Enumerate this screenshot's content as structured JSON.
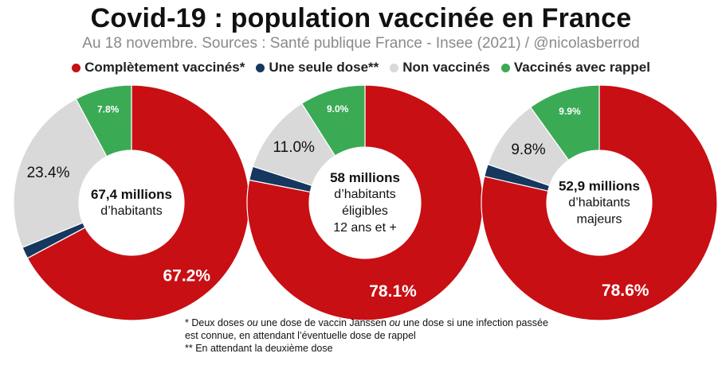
{
  "title": "Covid-19 : population vaccinée en France",
  "subtitle": "Au 18 novembre. Sources : Santé publique France - Insee (2021) / @nicolasberrod",
  "legend": [
    {
      "label": "Complètement vaccinés*",
      "color": "#c80f14"
    },
    {
      "label": "Une seule dose**",
      "color": "#16375e"
    },
    {
      "label": "Non vaccinés",
      "color": "#d9d9d9"
    },
    {
      "label": "Vaccinés avec rappel",
      "color": "#3aaa55"
    }
  ],
  "chart_data": [
    {
      "type": "pie",
      "variant": "donut",
      "center_label": [
        "67,4 millions",
        "d’habitants"
      ],
      "series": [
        {
          "name": "Complètement vaccinés*",
          "value": 67.2,
          "label": "67.2%",
          "color": "#c80f14"
        },
        {
          "name": "Une seule dose**",
          "value": 1.6,
          "label": "",
          "color": "#16375e"
        },
        {
          "name": "Non vaccinés",
          "value": 23.4,
          "label": "23.4%",
          "color": "#d9d9d9"
        },
        {
          "name": "Vaccinés avec rappel",
          "value": 7.8,
          "label": "7.8%",
          "color": "#3aaa55"
        }
      ]
    },
    {
      "type": "pie",
      "variant": "donut",
      "center_label": [
        "58 millions",
        "d’habitants",
        "éligibles",
        "12 ans et +"
      ],
      "series": [
        {
          "name": "Complètement vaccinés*",
          "value": 78.1,
          "label": "78.1%",
          "color": "#c80f14"
        },
        {
          "name": "Une seule dose**",
          "value": 1.9,
          "label": "",
          "color": "#16375e"
        },
        {
          "name": "Non vaccinés",
          "value": 11.0,
          "label": "11.0%",
          "color": "#d9d9d9"
        },
        {
          "name": "Vaccinés avec rappel",
          "value": 9.0,
          "label": "9.0%",
          "color": "#3aaa55"
        }
      ]
    },
    {
      "type": "pie",
      "variant": "donut",
      "center_label": [
        "52,9 millions",
        "d’habitants",
        "majeurs"
      ],
      "series": [
        {
          "name": "Complètement vaccinés*",
          "value": 78.6,
          "label": "78.6%",
          "color": "#c80f14"
        },
        {
          "name": "Une seule dose**",
          "value": 1.7,
          "label": "",
          "color": "#16375e"
        },
        {
          "name": "Non vaccinés",
          "value": 9.8,
          "label": "9.8%",
          "color": "#d9d9d9"
        },
        {
          "name": "Vaccinés avec rappel",
          "value": 9.9,
          "label": "9.9%",
          "color": "#3aaa55"
        }
      ]
    }
  ],
  "notes": [
    "* Deux doses ou une dose de vaccin Janssen ou une dose si une infection passée est connue, en attendant l’éventuelle dose de rappel",
    "** En attendant la deuxième dose"
  ]
}
